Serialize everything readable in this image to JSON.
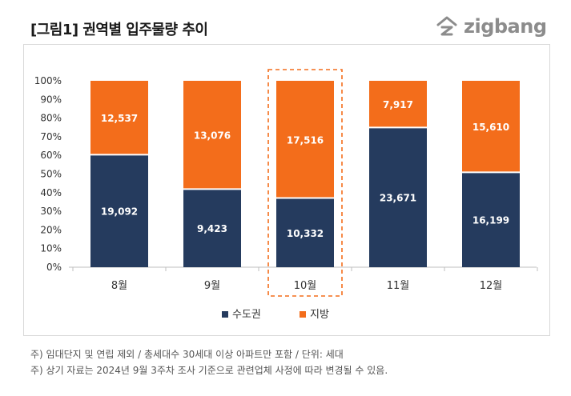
{
  "title": "[그림1] 권역별 입주물량 추이",
  "brand": {
    "name": "zigbang",
    "color": "#8c8c8c"
  },
  "colors": {
    "capital": "#253b5e",
    "regional": "#f36d1b",
    "highlight": "#f36d1b"
  },
  "notes": [
    "주) 임대단지 및 연립 제외 / 총세대수 30세대 이상 아파트만 포함 / 단위: 세대",
    "주) 상기 자료는 2024년 9월 3주차 조사 기준으로 관련업체 사정에 따라 변경될 수 있음."
  ],
  "chart_data": {
    "type": "bar",
    "stacked": "percent",
    "categories": [
      "8월",
      "9월",
      "10월",
      "11월",
      "12월"
    ],
    "series": [
      {
        "name": "수도권",
        "values": [
          19092,
          9423,
          10332,
          23671,
          16199
        ],
        "labels": [
          "19,092",
          "9,423",
          "10,332",
          "23,671",
          "16,199"
        ]
      },
      {
        "name": "지방",
        "values": [
          12537,
          13076,
          17516,
          7917,
          15610
        ],
        "labels": [
          "12,537",
          "13,076",
          "17,516",
          "7,917",
          "15,610"
        ]
      }
    ],
    "y_ticks": [
      "0%",
      "10%",
      "20%",
      "30%",
      "40%",
      "50%",
      "60%",
      "70%",
      "80%",
      "90%",
      "100%"
    ],
    "ylim": [
      0,
      100
    ],
    "highlight_category": "10월",
    "legend_position": "bottom",
    "grid": false
  }
}
